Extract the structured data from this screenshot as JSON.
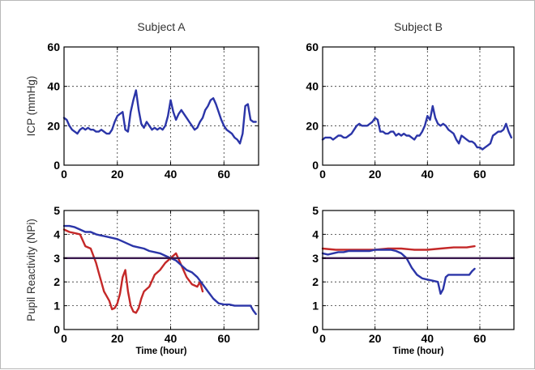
{
  "chart_data": [
    {
      "type": "line",
      "title": "Subject A",
      "ylabel": "ICP (mmHg)",
      "xlabel": "",
      "xlim": [
        0,
        73
      ],
      "ylim": [
        0,
        60
      ],
      "xticks": [
        0,
        20,
        40,
        60
      ],
      "yticks": [
        0,
        20,
        40,
        60
      ],
      "grid": true,
      "series": [
        {
          "color": "#2b35a8",
          "x": [
            0,
            1,
            2,
            3,
            4,
            5,
            6,
            7,
            8,
            9,
            10,
            11,
            12,
            13,
            14,
            15,
            16,
            17,
            18,
            19,
            20,
            21,
            22,
            23,
            24,
            25,
            26,
            27,
            28,
            29,
            30,
            31,
            32,
            33,
            34,
            35,
            36,
            37,
            38,
            39,
            40,
            41,
            42,
            43,
            44,
            45,
            46,
            47,
            48,
            49,
            50,
            51,
            52,
            53,
            54,
            55,
            56,
            57,
            58,
            59,
            60,
            61,
            62,
            63,
            64,
            65,
            66,
            67,
            68,
            69,
            70,
            71,
            72
          ],
          "y": [
            24,
            23,
            20,
            18,
            17,
            16,
            18,
            19,
            18,
            19,
            18,
            18,
            17,
            17,
            18,
            17,
            16,
            16,
            18,
            22,
            25,
            26,
            27,
            18,
            17,
            27,
            33,
            38,
            28,
            21,
            19,
            22,
            20,
            18,
            19,
            18,
            19,
            18,
            20,
            25,
            33,
            27,
            23,
            26,
            28,
            26,
            24,
            22,
            20,
            18,
            19,
            22,
            24,
            28,
            30,
            33,
            34,
            31,
            27,
            23,
            20,
            18,
            17,
            16,
            14,
            13,
            11,
            16,
            30,
            31,
            23,
            22,
            22
          ]
        }
      ]
    },
    {
      "type": "line",
      "title": "Subject B",
      "ylabel": "",
      "xlabel": "",
      "xlim": [
        0,
        73
      ],
      "ylim": [
        0,
        60
      ],
      "xticks": [
        0,
        20,
        40,
        60
      ],
      "yticks": [
        0,
        20,
        40,
        60
      ],
      "grid": true,
      "series": [
        {
          "color": "#2b35a8",
          "x": [
            0,
            1,
            2,
            3,
            4,
            5,
            6,
            7,
            8,
            9,
            10,
            11,
            12,
            13,
            14,
            15,
            16,
            17,
            18,
            19,
            20,
            21,
            22,
            23,
            24,
            25,
            26,
            27,
            28,
            29,
            30,
            31,
            32,
            33,
            34,
            35,
            36,
            37,
            38,
            39,
            40,
            41,
            42,
            43,
            44,
            45,
            46,
            47,
            48,
            49,
            50,
            51,
            52,
            53,
            54,
            55,
            56,
            57,
            58,
            59,
            60,
            61,
            62,
            63,
            64,
            65,
            66,
            67,
            68,
            69,
            70,
            71,
            72
          ],
          "y": [
            13,
            14,
            14,
            14,
            13,
            14,
            15,
            15,
            14,
            14,
            15,
            16,
            18,
            20,
            21,
            20,
            20,
            20,
            21,
            22,
            24,
            23,
            17,
            17,
            16,
            16,
            17,
            17,
            15,
            16,
            15,
            16,
            15,
            15,
            14,
            13,
            15,
            15,
            17,
            20,
            25,
            23,
            30,
            24,
            21,
            20,
            21,
            20,
            18,
            17,
            16,
            13,
            11,
            15,
            14,
            13,
            12,
            12,
            11,
            9,
            9,
            8,
            9,
            10,
            11,
            15,
            16,
            17,
            17,
            18,
            21,
            17,
            14
          ]
        }
      ]
    },
    {
      "type": "line",
      "title": "",
      "ylabel": "Pupil Reactivity (NPi)",
      "xlabel": "Time (hour)",
      "xlim": [
        0,
        73
      ],
      "ylim": [
        0,
        5
      ],
      "xticks": [
        0,
        20,
        40,
        60
      ],
      "yticks": [
        0,
        1,
        2,
        3,
        4,
        5
      ],
      "grid": true,
      "series": [
        {
          "color": "#c42828",
          "x": [
            0,
            2,
            4,
            6,
            8,
            10,
            12,
            13,
            14,
            15,
            16,
            17,
            18,
            19,
            20,
            21,
            22,
            23,
            24,
            25,
            26,
            27,
            28,
            29,
            30,
            31,
            32,
            34,
            36,
            38,
            40,
            42,
            44,
            46,
            48,
            50,
            51,
            52
          ],
          "y": [
            4.2,
            4.1,
            4.05,
            4.0,
            3.5,
            3.4,
            2.8,
            2.4,
            2.0,
            1.6,
            1.4,
            1.2,
            0.85,
            0.9,
            1.1,
            1.5,
            2.2,
            2.5,
            1.6,
            1.0,
            0.75,
            0.7,
            0.9,
            1.3,
            1.6,
            1.7,
            1.8,
            2.3,
            2.5,
            2.8,
            3.0,
            3.2,
            2.7,
            2.2,
            1.9,
            1.8,
            2.0,
            1.6
          ]
        },
        {
          "color": "#2b35a8",
          "x": [
            0,
            2,
            4,
            6,
            8,
            10,
            12,
            14,
            16,
            18,
            20,
            22,
            24,
            26,
            28,
            30,
            32,
            34,
            36,
            38,
            40,
            42,
            44,
            46,
            48,
            50,
            52,
            54,
            56,
            58,
            60,
            62,
            64,
            66,
            68,
            70,
            71,
            72
          ],
          "y": [
            4.35,
            4.35,
            4.3,
            4.2,
            4.1,
            4.1,
            4.0,
            3.95,
            3.9,
            3.85,
            3.8,
            3.7,
            3.6,
            3.5,
            3.45,
            3.4,
            3.3,
            3.25,
            3.2,
            3.1,
            3.0,
            2.9,
            2.7,
            2.5,
            2.4,
            2.2,
            1.9,
            1.6,
            1.3,
            1.1,
            1.05,
            1.05,
            1.0,
            1.0,
            1.0,
            1.0,
            0.8,
            0.65
          ]
        },
        {
          "color": "#3a1a4e",
          "x": [
            0,
            73
          ],
          "y": [
            3.0,
            3.0
          ]
        }
      ]
    },
    {
      "type": "line",
      "title": "",
      "ylabel": "",
      "xlabel": "Time (hour)",
      "xlim": [
        0,
        73
      ],
      "ylim": [
        0,
        5
      ],
      "xticks": [
        0,
        20,
        40,
        60
      ],
      "yticks": [
        0,
        1,
        2,
        3,
        4,
        5
      ],
      "grid": true,
      "series": [
        {
          "color": "#c42828",
          "x": [
            0,
            5,
            10,
            15,
            20,
            25,
            30,
            35,
            40,
            45,
            50,
            55,
            58
          ],
          "y": [
            3.4,
            3.35,
            3.35,
            3.35,
            3.35,
            3.4,
            3.4,
            3.35,
            3.35,
            3.4,
            3.45,
            3.45,
            3.5
          ]
        },
        {
          "color": "#2b35a8",
          "x": [
            0,
            2,
            4,
            6,
            8,
            10,
            12,
            14,
            16,
            18,
            20,
            22,
            24,
            26,
            28,
            30,
            32,
            34,
            36,
            38,
            40,
            42,
            44,
            45,
            46,
            47,
            48,
            50,
            52,
            54,
            56,
            57,
            58
          ],
          "y": [
            3.2,
            3.15,
            3.2,
            3.25,
            3.25,
            3.3,
            3.3,
            3.3,
            3.3,
            3.3,
            3.35,
            3.35,
            3.35,
            3.35,
            3.3,
            3.2,
            3.0,
            2.6,
            2.3,
            2.15,
            2.1,
            2.05,
            2.0,
            1.5,
            1.7,
            2.2,
            2.3,
            2.3,
            2.3,
            2.3,
            2.3,
            2.45,
            2.55
          ]
        },
        {
          "color": "#3a1a4e",
          "x": [
            0,
            73
          ],
          "y": [
            3.0,
            3.0
          ]
        }
      ]
    }
  ]
}
